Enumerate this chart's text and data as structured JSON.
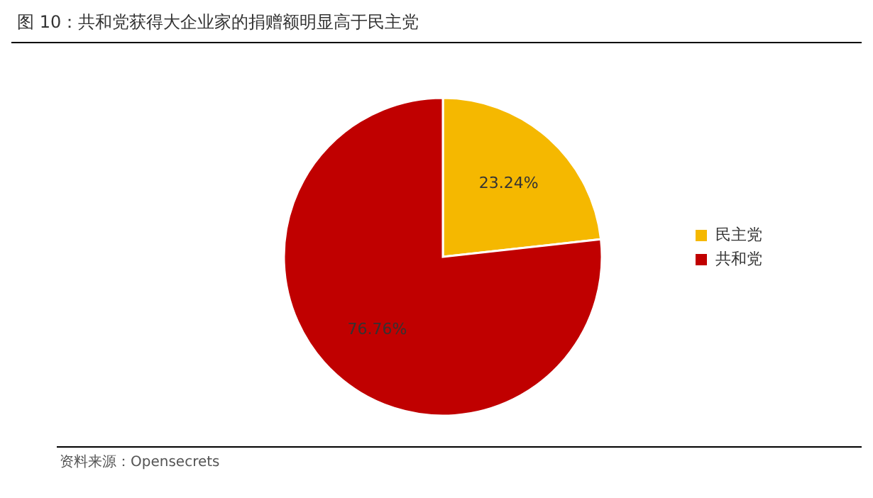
{
  "chart_data": {
    "type": "pie",
    "title": "图 10：共和党获得大企业家的捐赠额明显高于民主党",
    "categories": [
      "民主党",
      "共和党"
    ],
    "values": [
      23.24,
      76.76
    ],
    "value_labels": [
      "23.24%",
      "76.76%"
    ],
    "colors": [
      "#f5b800",
      "#c00000"
    ],
    "legend": "right",
    "annotations": [
      "资料来源：Opensecrets"
    ]
  }
}
